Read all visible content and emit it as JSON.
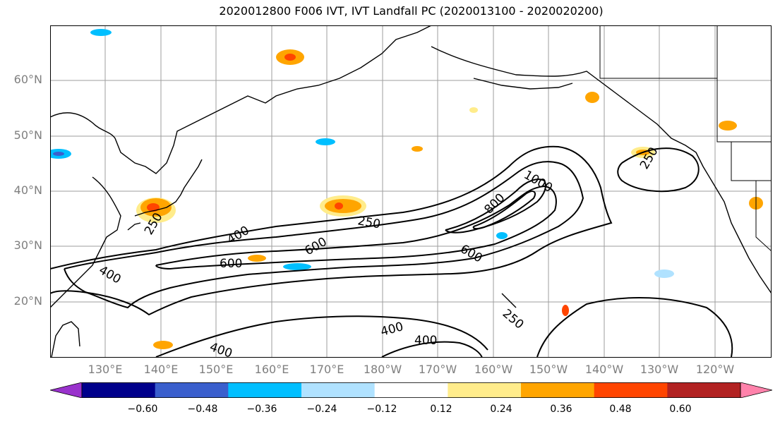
{
  "title": "2020012800 F006 IVT, IVT Landfall PC (2020013100 - 2020020200)",
  "lat_labels": [
    "60°N",
    "50°N",
    "40°N",
    "30°N",
    "20°N"
  ],
  "lon_labels": [
    "130°E",
    "140°E",
    "150°E",
    "160°E",
    "170°E",
    "180°W",
    "170°W",
    "160°W",
    "150°W",
    "140°W",
    "130°W",
    "120°W"
  ],
  "contour_labels": [
    "1000",
    "800",
    "600",
    "600",
    "600",
    "400",
    "400",
    "400",
    "400",
    "400",
    "250",
    "250",
    "250",
    "250"
  ],
  "colorbar": {
    "colors": [
      "#9932cc",
      "#00008b",
      "#3a5fcd",
      "#00bfff",
      "#b0e2ff",
      "#ffffff",
      "#ffec8b",
      "#ffa500",
      "#ff4500",
      "#b22222",
      "#ff82ab"
    ],
    "tick_labels": [
      "−0.60",
      "−0.48",
      "−0.36",
      "−0.24",
      "−0.12",
      "0.12",
      "0.24",
      "0.36",
      "0.48",
      "0.60"
    ],
    "extend": "both"
  },
  "colors": {
    "grid": "#9e9e9e",
    "coast": "#000000",
    "contour": "#000000",
    "axis_label": "#7f7f7f"
  }
}
